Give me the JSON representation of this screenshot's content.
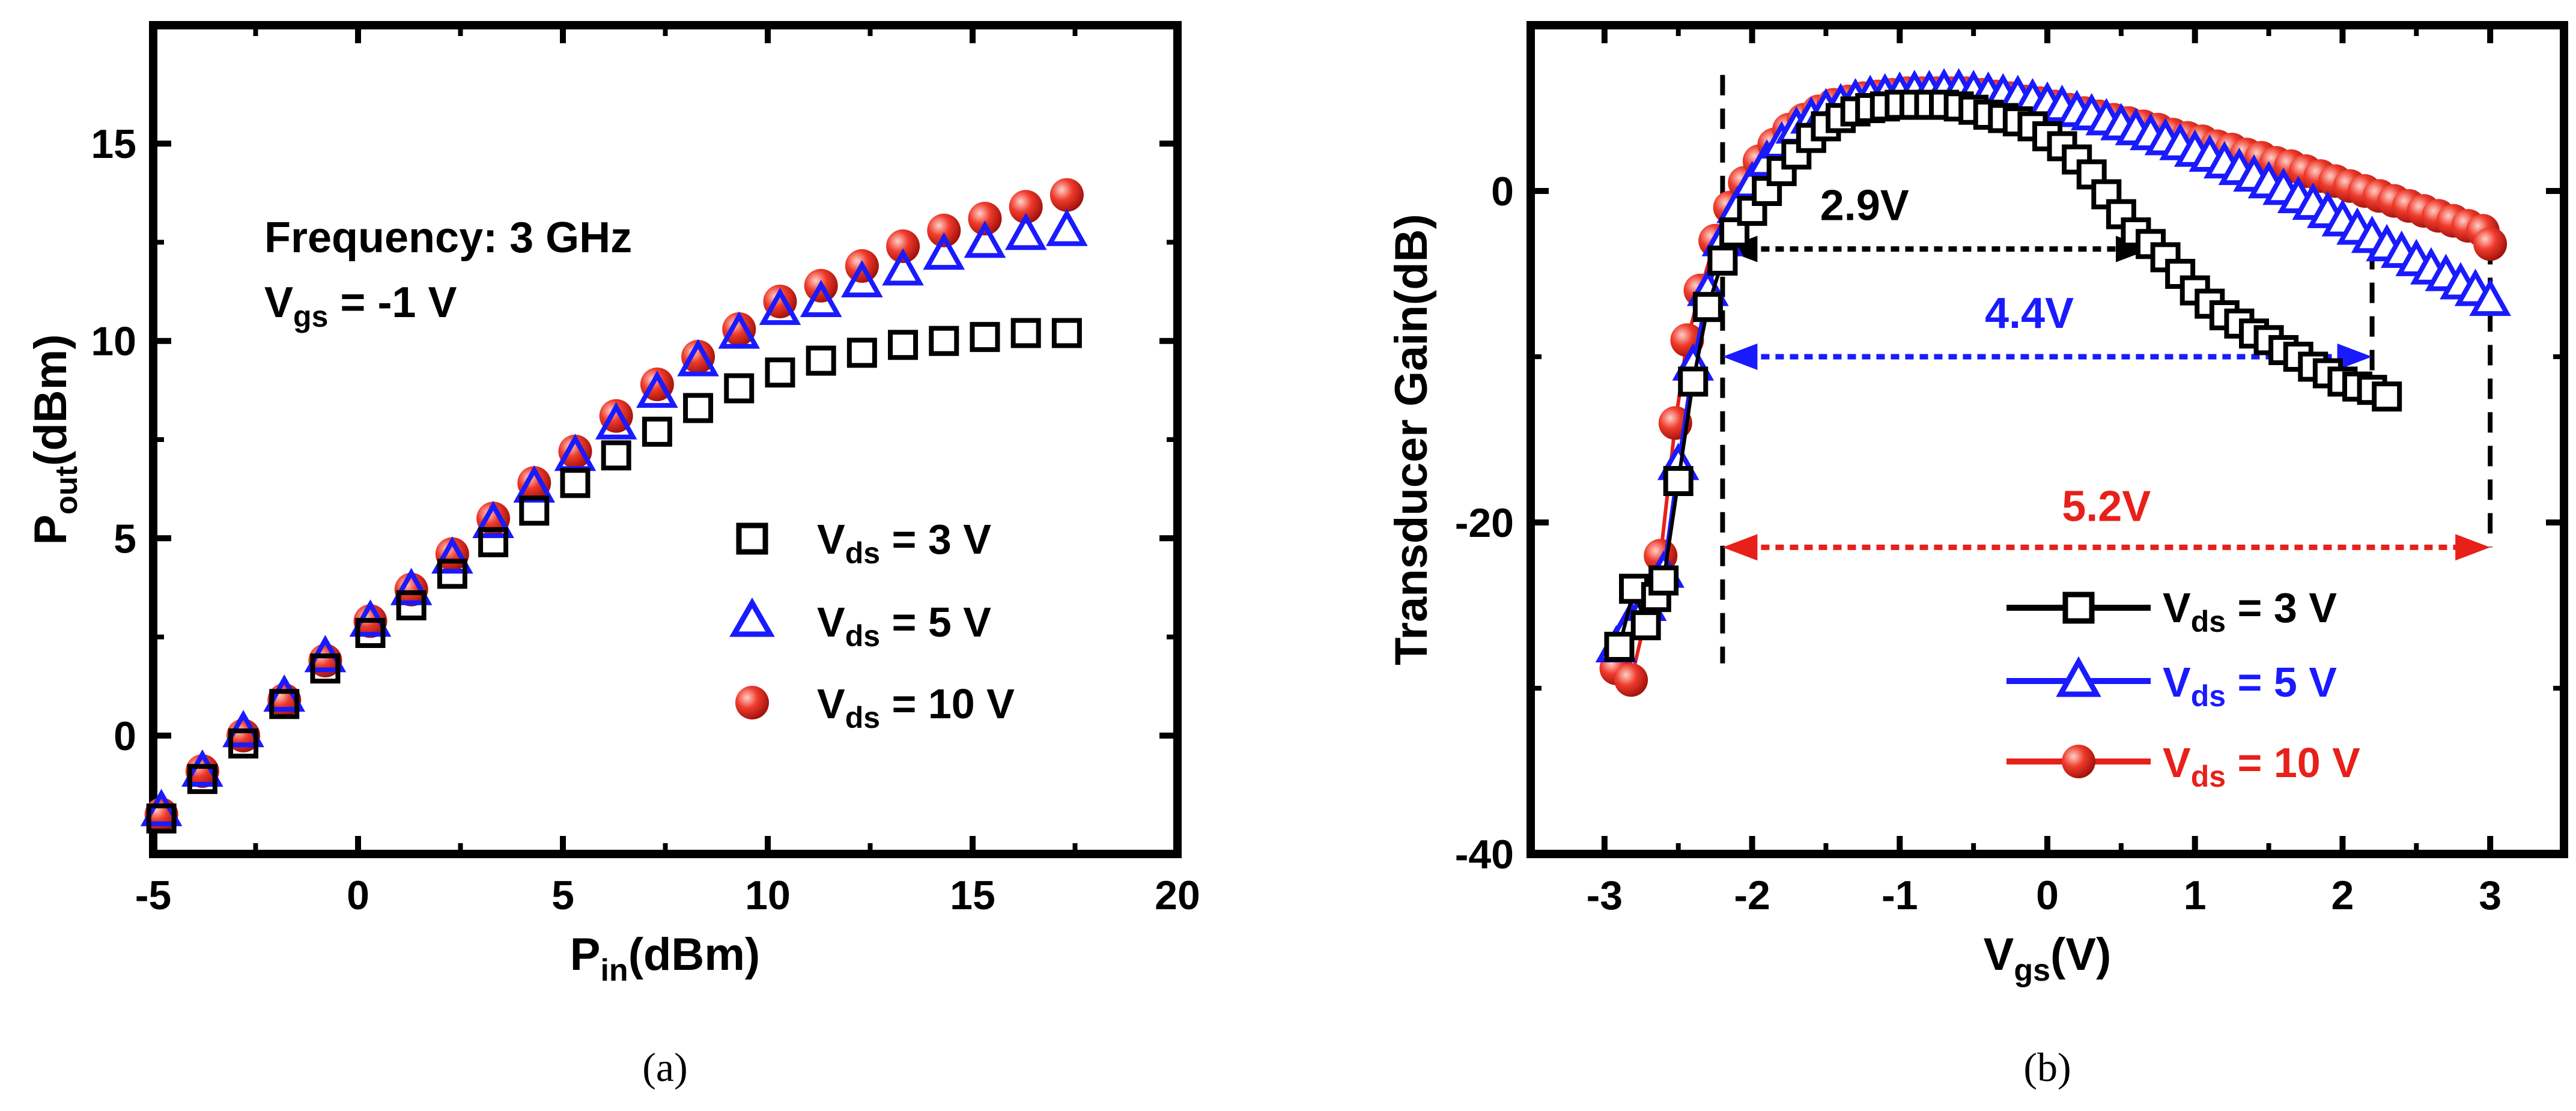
{
  "chart_data": [
    {
      "type": "scatter",
      "panel_label": "(a)",
      "xlabel": {
        "main": "P",
        "sub": "in",
        "rest": "(dBm)"
      },
      "ylabel": {
        "main": "P",
        "sub": "out",
        "rest": "(dBm)"
      },
      "xlim": [
        -5,
        20
      ],
      "ylim": [
        -3,
        18
      ],
      "xticks": [
        -5,
        0,
        5,
        10,
        15,
        20
      ],
      "xtick_labels": [
        "-5",
        "0",
        "5",
        "10",
        "15",
        "20"
      ],
      "yticks": [
        0,
        5,
        10,
        15
      ],
      "ytick_labels": [
        "0",
        "5",
        "10",
        "15"
      ],
      "annotations": {
        "frequency": "Frequency: 3 GHz",
        "vgs_main": "V",
        "vgs_sub": "gs",
        "vgs_rest": " = -1 V"
      },
      "x": [
        -4.8,
        -3.8,
        -2.8,
        -1.8,
        -0.8,
        0.3,
        1.3,
        2.3,
        3.3,
        4.3,
        5.3,
        6.3,
        7.3,
        8.3,
        9.3,
        10.3,
        11.3,
        12.3,
        13.3,
        14.3,
        15.3,
        16.3,
        17.3
      ],
      "series": [
        {
          "name_main": "V",
          "name_sub": "ds",
          "name_rest": " = 3 V",
          "marker": "square",
          "color": "#000000",
          "values": [
            -2.1,
            -1.1,
            -0.2,
            0.8,
            1.7,
            2.6,
            3.3,
            4.1,
            4.9,
            5.7,
            6.4,
            7.1,
            7.7,
            8.3,
            8.8,
            9.2,
            9.5,
            9.7,
            9.9,
            10.0,
            10.1,
            10.2,
            10.2
          ]
        },
        {
          "name_main": "V",
          "name_sub": "ds",
          "name_rest": " = 5 V",
          "marker": "triangle",
          "color": "#1a1aff",
          "values": [
            -1.9,
            -0.9,
            0.1,
            1.0,
            2.0,
            2.9,
            3.7,
            4.5,
            5.4,
            6.3,
            7.1,
            7.9,
            8.7,
            9.5,
            10.2,
            10.8,
            11.0,
            11.5,
            11.8,
            12.2,
            12.5,
            12.7,
            12.8
          ]
        },
        {
          "name_main": "V",
          "name_sub": "ds",
          "name_rest": " = 10 V",
          "marker": "sphere",
          "color": "#e8201a",
          "values": [
            -2.0,
            -0.9,
            0.0,
            0.9,
            1.9,
            2.9,
            3.7,
            4.6,
            5.5,
            6.4,
            7.2,
            8.1,
            8.9,
            9.6,
            10.3,
            11.0,
            11.4,
            11.9,
            12.4,
            12.8,
            13.1,
            13.4,
            13.7
          ]
        }
      ]
    },
    {
      "type": "line",
      "panel_label": "(b)",
      "xlabel": {
        "main": "V",
        "sub": "gs",
        "rest": "(V)"
      },
      "ylabel": {
        "main": "Transducer Gain(dB)"
      },
      "xlim": [
        -3.5,
        3.5
      ],
      "ylim": [
        -40,
        10
      ],
      "xticks": [
        -3,
        -2,
        -1,
        0,
        1,
        2,
        3
      ],
      "xtick_labels": [
        "-3",
        "-2",
        "-1",
        "0",
        "1",
        "2",
        "3"
      ],
      "yticks": [
        -40,
        -20,
        0
      ],
      "ytick_labels": [
        "-40",
        "-20",
        "0"
      ],
      "series": [
        {
          "name_main": "V",
          "name_sub": "ds",
          "name_rest": " = 3 V",
          "marker": "square",
          "color": "#000000",
          "x": [
            -2.9,
            -2.8,
            -2.72,
            -2.65,
            -2.6,
            -2.5,
            -2.4,
            -2.3,
            -2.2,
            -2.12,
            -2.0,
            -1.9,
            -1.8,
            -1.7,
            -1.6,
            -1.5,
            -1.4,
            -1.3,
            -1.2,
            -1.1,
            -1.0,
            -0.9,
            -0.8,
            -0.7,
            -0.6,
            -0.5,
            -0.4,
            -0.3,
            -0.2,
            -0.1,
            0.0,
            0.1,
            0.2,
            0.3,
            0.4,
            0.5,
            0.6,
            0.7,
            0.8,
            0.9,
            1.0,
            1.1,
            1.2,
            1.3,
            1.4,
            1.5,
            1.6,
            1.7,
            1.8,
            1.9,
            2.0,
            2.1,
            2.2,
            2.3
          ],
          "values": [
            -27.5,
            -24.0,
            -26.2,
            -24.5,
            -23.5,
            -17.5,
            -11.5,
            -7.0,
            -4.2,
            -2.5,
            -1.2,
            0.0,
            1.2,
            2.2,
            3.2,
            3.9,
            4.4,
            4.8,
            5.0,
            5.1,
            5.2,
            5.2,
            5.2,
            5.2,
            5.1,
            4.9,
            4.6,
            4.4,
            4.2,
            3.9,
            3.3,
            2.7,
            1.9,
            1.0,
            -0.2,
            -1.4,
            -2.5,
            -3.2,
            -4.0,
            -5.0,
            -6.0,
            -6.8,
            -7.5,
            -8.0,
            -8.6,
            -9.0,
            -9.6,
            -10.0,
            -10.6,
            -11.0,
            -11.5,
            -11.8,
            -12.0,
            -12.4
          ]
        },
        {
          "name_main": "V",
          "name_sub": "ds",
          "name_rest": " = 5 V",
          "marker": "triangle",
          "color": "#1a1aff",
          "x": [
            -2.92,
            -2.82,
            -2.72,
            -2.6,
            -2.5,
            -2.4,
            -2.3,
            -2.2,
            -2.1,
            -2.0,
            -1.9,
            -1.8,
            -1.7,
            -1.6,
            -1.5,
            -1.4,
            -1.3,
            -1.2,
            -1.1,
            -1.0,
            -0.9,
            -0.8,
            -0.7,
            -0.6,
            -0.5,
            -0.4,
            -0.3,
            -0.2,
            -0.1,
            0.0,
            0.1,
            0.2,
            0.3,
            0.4,
            0.5,
            0.6,
            0.7,
            0.8,
            0.9,
            1.0,
            1.1,
            1.2,
            1.3,
            1.4,
            1.5,
            1.6,
            1.7,
            1.8,
            1.9,
            2.0,
            2.1,
            2.2,
            2.3,
            2.4,
            2.5,
            2.6,
            2.7,
            2.8,
            2.9,
            3.0
          ],
          "values": [
            -27.5,
            -26.0,
            -25.0,
            -23.0,
            -16.5,
            -10.5,
            -6.0,
            -3.0,
            -1.0,
            0.5,
            1.8,
            2.9,
            3.8,
            4.4,
            4.9,
            5.2,
            5.5,
            5.7,
            5.8,
            5.9,
            6.0,
            6.0,
            6.1,
            6.1,
            6.0,
            5.9,
            5.8,
            5.7,
            5.5,
            5.3,
            5.1,
            4.8,
            4.6,
            4.3,
            4.0,
            3.7,
            3.4,
            3.1,
            2.8,
            2.4,
            2.1,
            1.7,
            1.3,
            0.9,
            0.5,
            0.1,
            -0.4,
            -0.8,
            -1.3,
            -1.8,
            -2.3,
            -2.8,
            -3.3,
            -3.7,
            -4.2,
            -4.7,
            -5.1,
            -5.6,
            -6.0,
            -6.6
          ]
        },
        {
          "name_main": "V",
          "name_sub": "ds",
          "name_rest": " = 10 V",
          "marker": "sphere",
          "color": "#e8201a",
          "x": [
            -2.92,
            -2.82,
            -2.62,
            -2.52,
            -2.44,
            -2.35,
            -2.25,
            -2.15,
            -2.05,
            -1.95,
            -1.85,
            -1.75,
            -1.65,
            -1.55,
            -1.45,
            -1.35,
            -1.25,
            -1.15,
            -1.05,
            -0.95,
            -0.85,
            -0.75,
            -0.65,
            -0.55,
            -0.45,
            -0.35,
            -0.25,
            -0.15,
            -0.05,
            0.05,
            0.15,
            0.25,
            0.35,
            0.45,
            0.55,
            0.65,
            0.75,
            0.85,
            0.95,
            1.05,
            1.15,
            1.25,
            1.35,
            1.45,
            1.55,
            1.65,
            1.75,
            1.85,
            1.95,
            2.05,
            2.15,
            2.25,
            2.35,
            2.45,
            2.55,
            2.65,
            2.75,
            2.85,
            2.95,
            3.0
          ],
          "values": [
            -28.8,
            -29.5,
            -22.0,
            -14.0,
            -9.0,
            -6.0,
            -3.0,
            -1.0,
            0.5,
            1.8,
            2.8,
            3.7,
            4.3,
            4.8,
            5.2,
            5.4,
            5.6,
            5.7,
            5.8,
            5.9,
            5.9,
            5.9,
            5.9,
            5.9,
            5.8,
            5.7,
            5.6,
            5.4,
            5.3,
            5.1,
            4.9,
            4.7,
            4.5,
            4.3,
            4.1,
            3.9,
            3.7,
            3.4,
            3.2,
            3.0,
            2.7,
            2.5,
            2.2,
            2.0,
            1.7,
            1.5,
            1.2,
            0.9,
            0.6,
            0.3,
            0.0,
            -0.3,
            -0.6,
            -0.9,
            -1.2,
            -1.5,
            -1.8,
            -2.1,
            -2.4,
            -3.2
          ]
        }
      ],
      "vlines": [
        -2.2,
        2.2,
        3.0
      ],
      "arrows": [
        {
          "label": "2.9V",
          "from": -2.2,
          "to": 0.7,
          "y": -3.5,
          "color": "#000000"
        },
        {
          "label": "4.4V",
          "from": -2.2,
          "to": 2.2,
          "y": -10.0,
          "color": "#1a1aff"
        },
        {
          "label": "5.2V",
          "from": -2.2,
          "to": 3.0,
          "y": -21.5,
          "color": "#e8201a"
        }
      ]
    }
  ]
}
